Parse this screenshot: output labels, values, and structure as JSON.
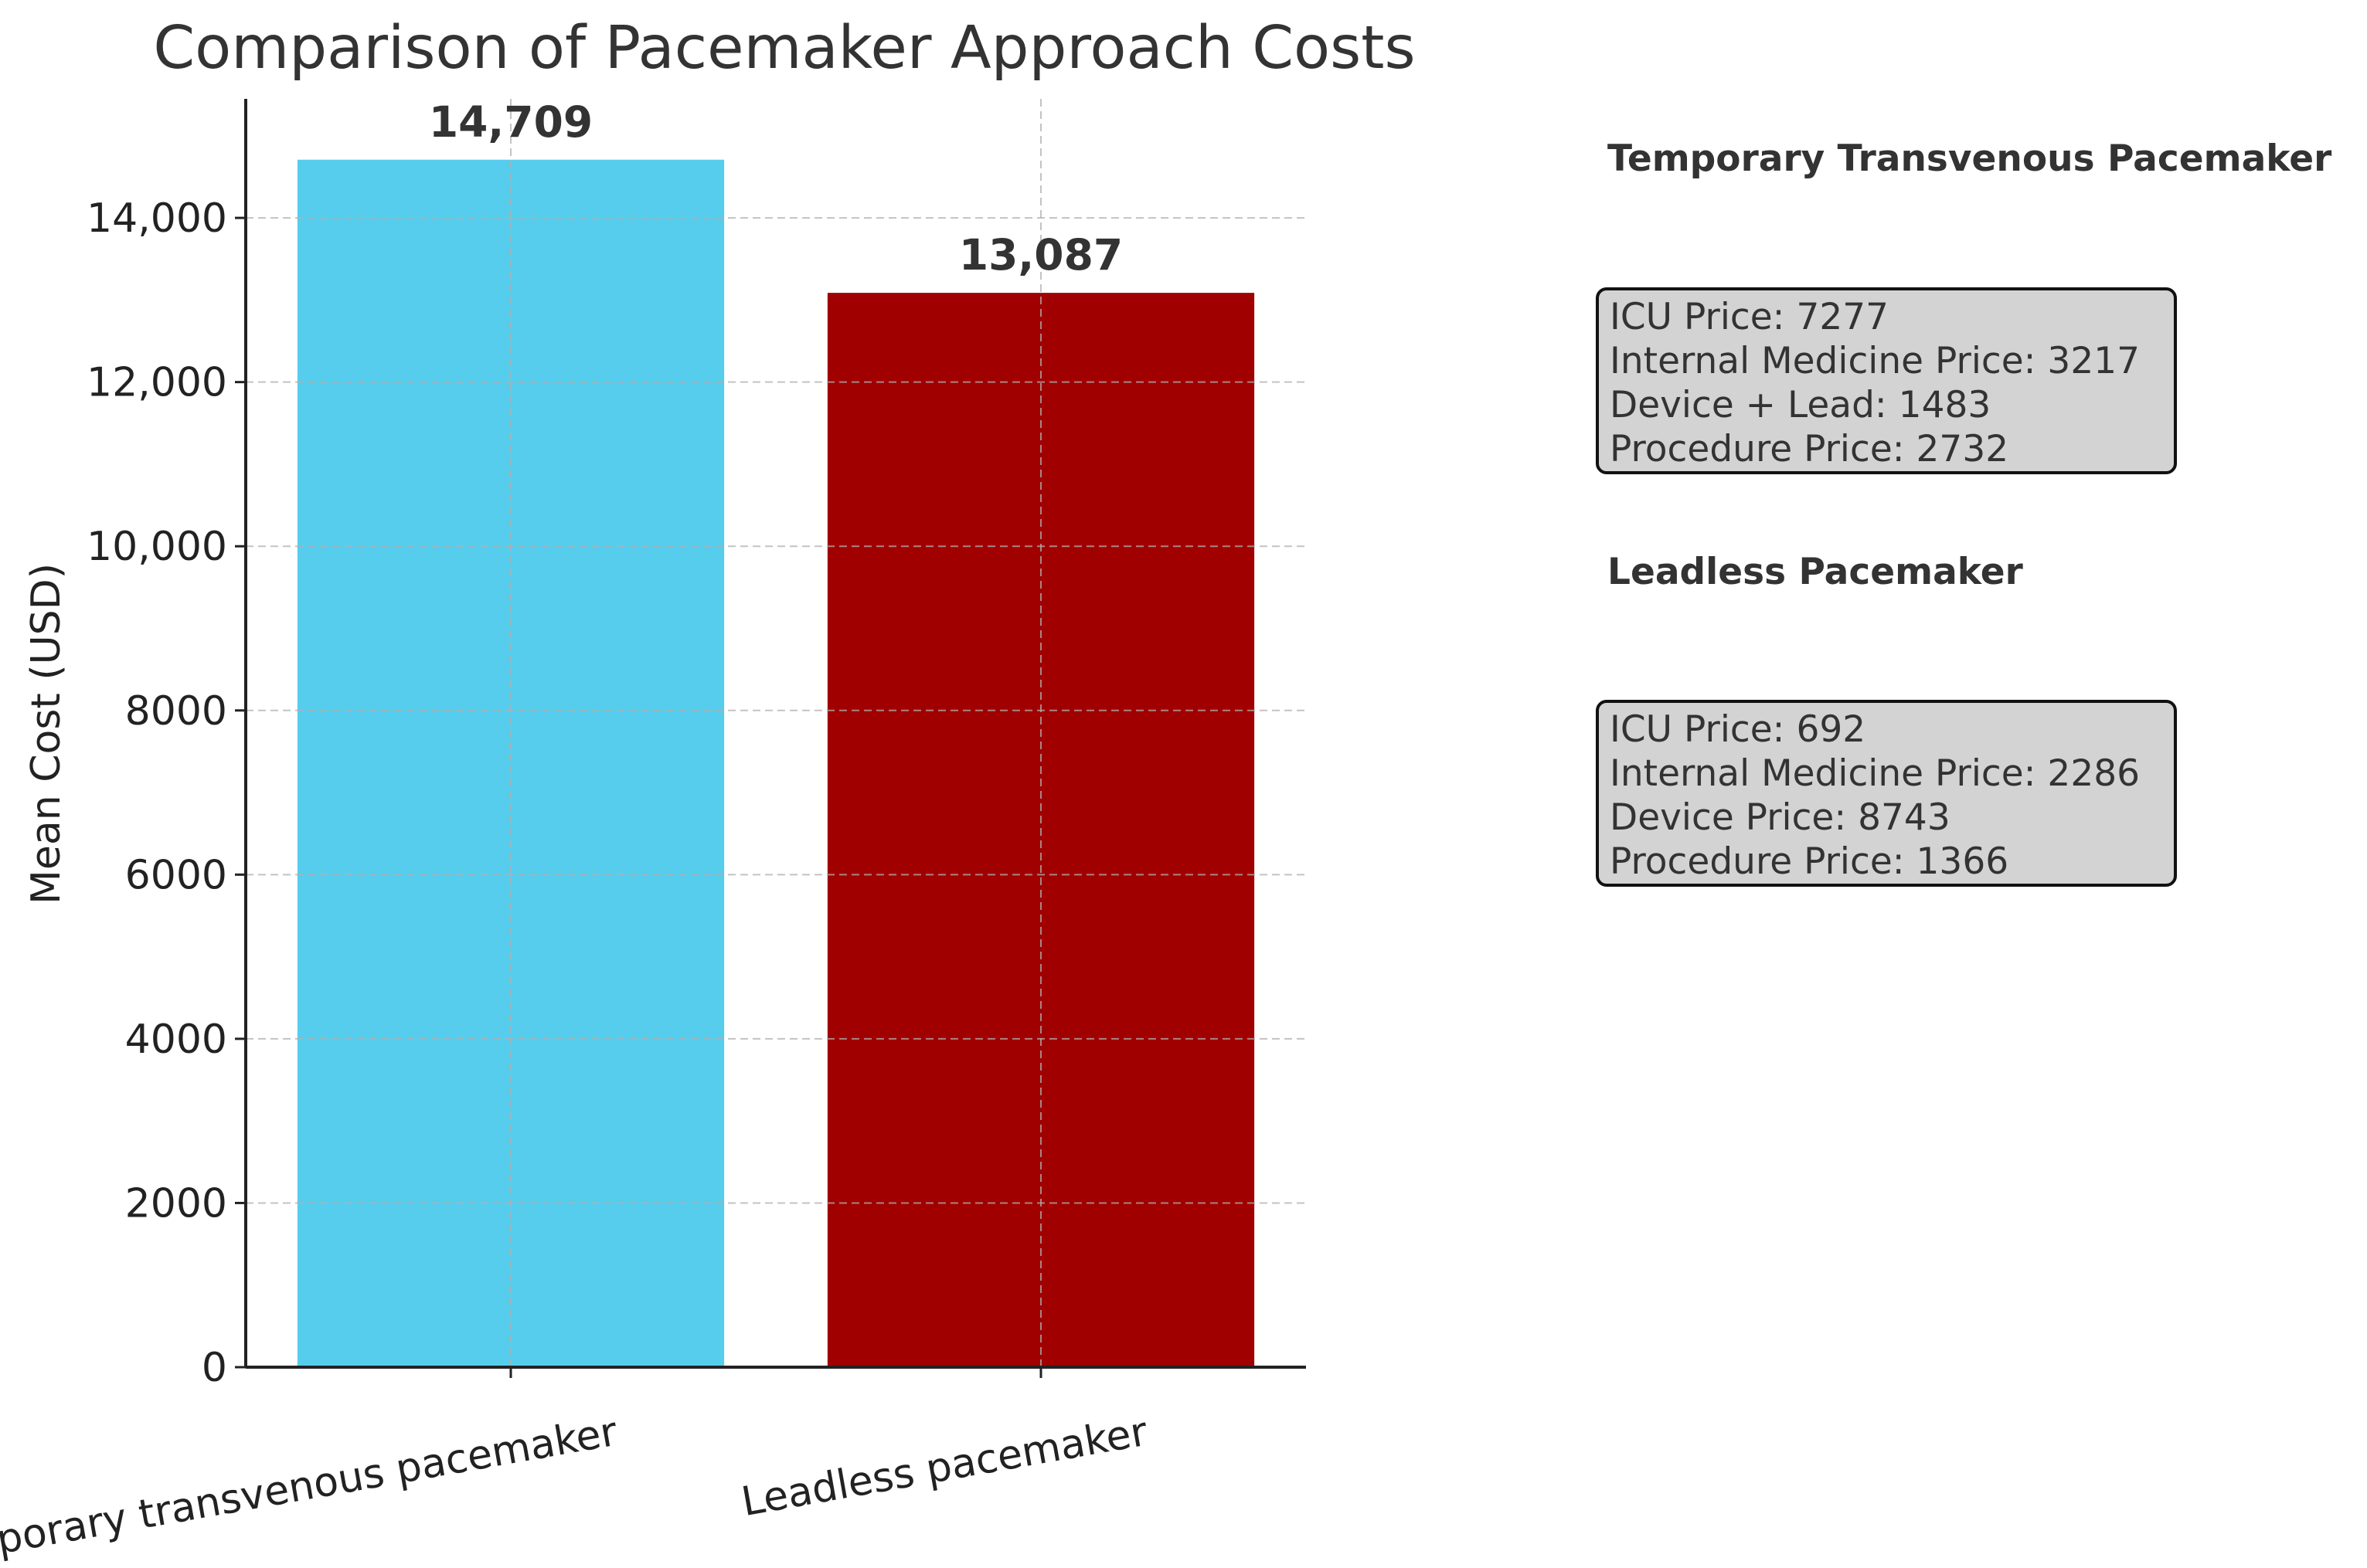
{
  "chart_data": {
    "type": "bar",
    "title": "Comparison of Pacemaker Approach Costs",
    "xlabel": "",
    "ylabel": "Mean Cost (USD)",
    "categories": [
      "Temporary transvenous pacemaker",
      "Leadless pacemaker"
    ],
    "values": [
      14709,
      13087
    ],
    "value_labels": [
      "14,709",
      "13,087"
    ],
    "colors": [
      "#56cded",
      "#a00000"
    ],
    "ylim": [
      0,
      15450
    ],
    "yticks": [
      0,
      2000,
      4000,
      6000,
      8000,
      10000,
      12000,
      14000
    ],
    "ytick_labels": [
      "0",
      "2000",
      "4000",
      "6000",
      "8000",
      "10,000",
      "12,000",
      "14,000"
    ],
    "grid": true
  },
  "annotations": [
    {
      "title": "Temporary Transvenous Pacemaker",
      "lines": [
        "ICU Price: 7277",
        "Internal Medicine Price: 3217",
        "Device + Lead: 1483",
        "Procedure Price: 2732"
      ]
    },
    {
      "title": "Leadless Pacemaker",
      "lines": [
        "ICU Price: 692",
        "Internal Medicine Price: 2286",
        "Device Price: 8743",
        "Procedure Price: 1366"
      ]
    }
  ]
}
